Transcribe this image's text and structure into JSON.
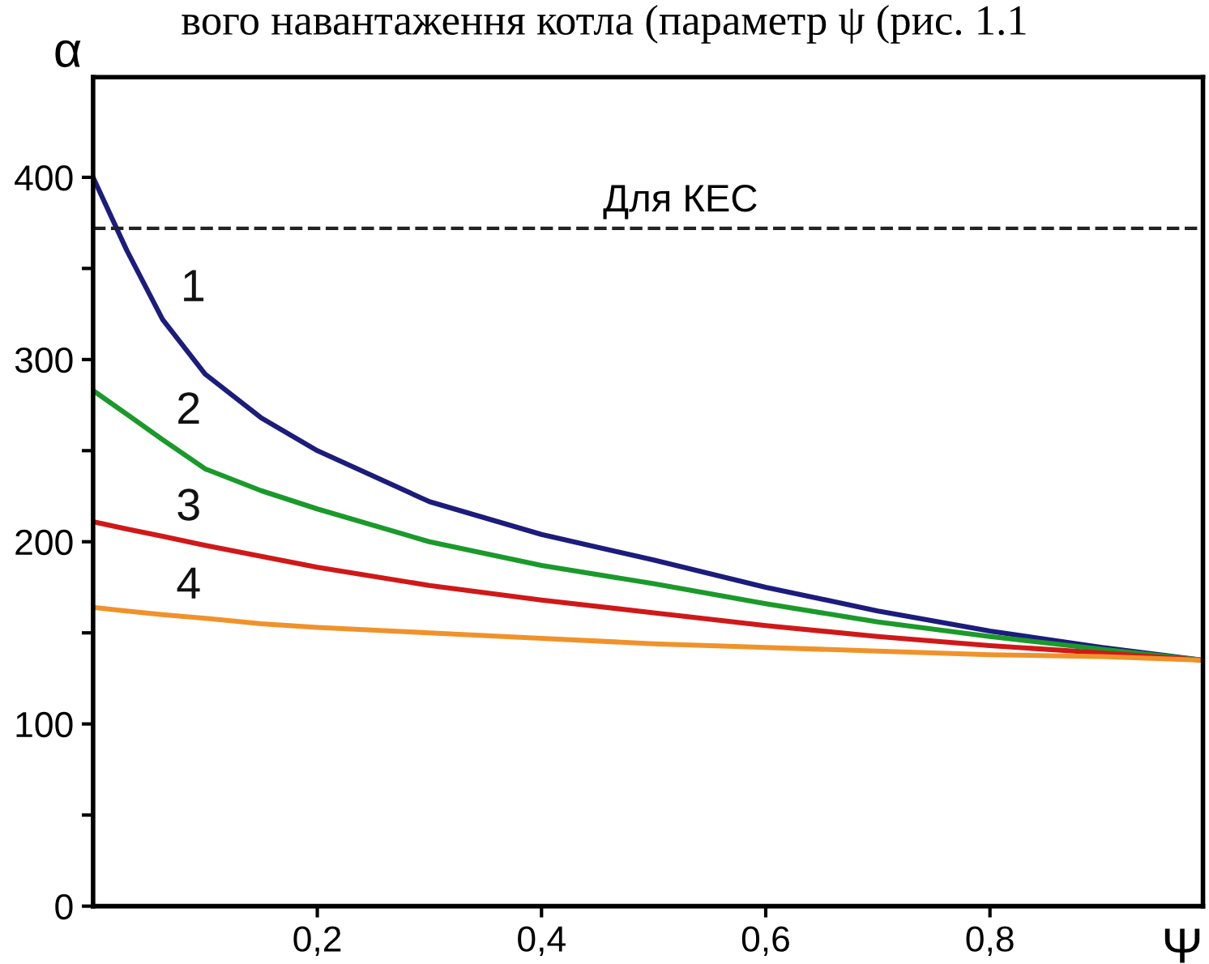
{
  "chart_data": {
    "type": "line",
    "xlabel": "Ψ",
    "ylabel": "α",
    "xlim": [
      0,
      0.99
    ],
    "ylim": [
      0,
      455
    ],
    "xticks": [
      {
        "value": 0.2,
        "label": "0,2"
      },
      {
        "value": 0.4,
        "label": "0,4"
      },
      {
        "value": 0.6,
        "label": "0,6"
      },
      {
        "value": 0.8,
        "label": "0,8"
      }
    ],
    "yticks": [
      0,
      {
        "value": 50,
        "label": null
      },
      100,
      {
        "value": 150,
        "label": null
      },
      200,
      {
        "value": 250,
        "label": null
      },
      300,
      {
        "value": 350,
        "label": null
      },
      400
    ],
    "x": [
      0,
      0.03,
      0.062,
      0.1,
      0.15,
      0.2,
      0.3,
      0.4,
      0.5,
      0.6,
      0.7,
      0.8,
      0.9,
      0.99
    ],
    "series": [
      {
        "name": "1",
        "color": "#1c1c7c",
        "values": [
          400,
          360,
          322,
          292,
          268,
          250,
          222,
          204,
          190,
          175,
          162,
          151,
          142,
          135
        ]
      },
      {
        "name": "2",
        "color": "#1a9a2a",
        "values": [
          283,
          270,
          256,
          240,
          228,
          218,
          200,
          187,
          177,
          166,
          156,
          148,
          141,
          135
        ]
      },
      {
        "name": "3",
        "color": "#d01818",
        "values": [
          211,
          207,
          203,
          198,
          192,
          186,
          176,
          168,
          161,
          154,
          148,
          143,
          139,
          135
        ]
      },
      {
        "name": "4",
        "color": "#f0922a",
        "values": [
          164,
          162,
          160,
          158,
          155,
          153,
          150,
          147,
          144,
          142,
          140,
          138,
          137,
          135
        ]
      }
    ],
    "ref_lines": [
      {
        "axis": "y",
        "value": 372,
        "label": "Для КЕС",
        "color": "#222222",
        "line_style": "dashed"
      }
    ],
    "annotations": [
      "вого навантаження котла (параметр ψ (рис. 1.1"
    ],
    "grid": false,
    "legend": false,
    "marker": "none",
    "line_style": "solid"
  }
}
